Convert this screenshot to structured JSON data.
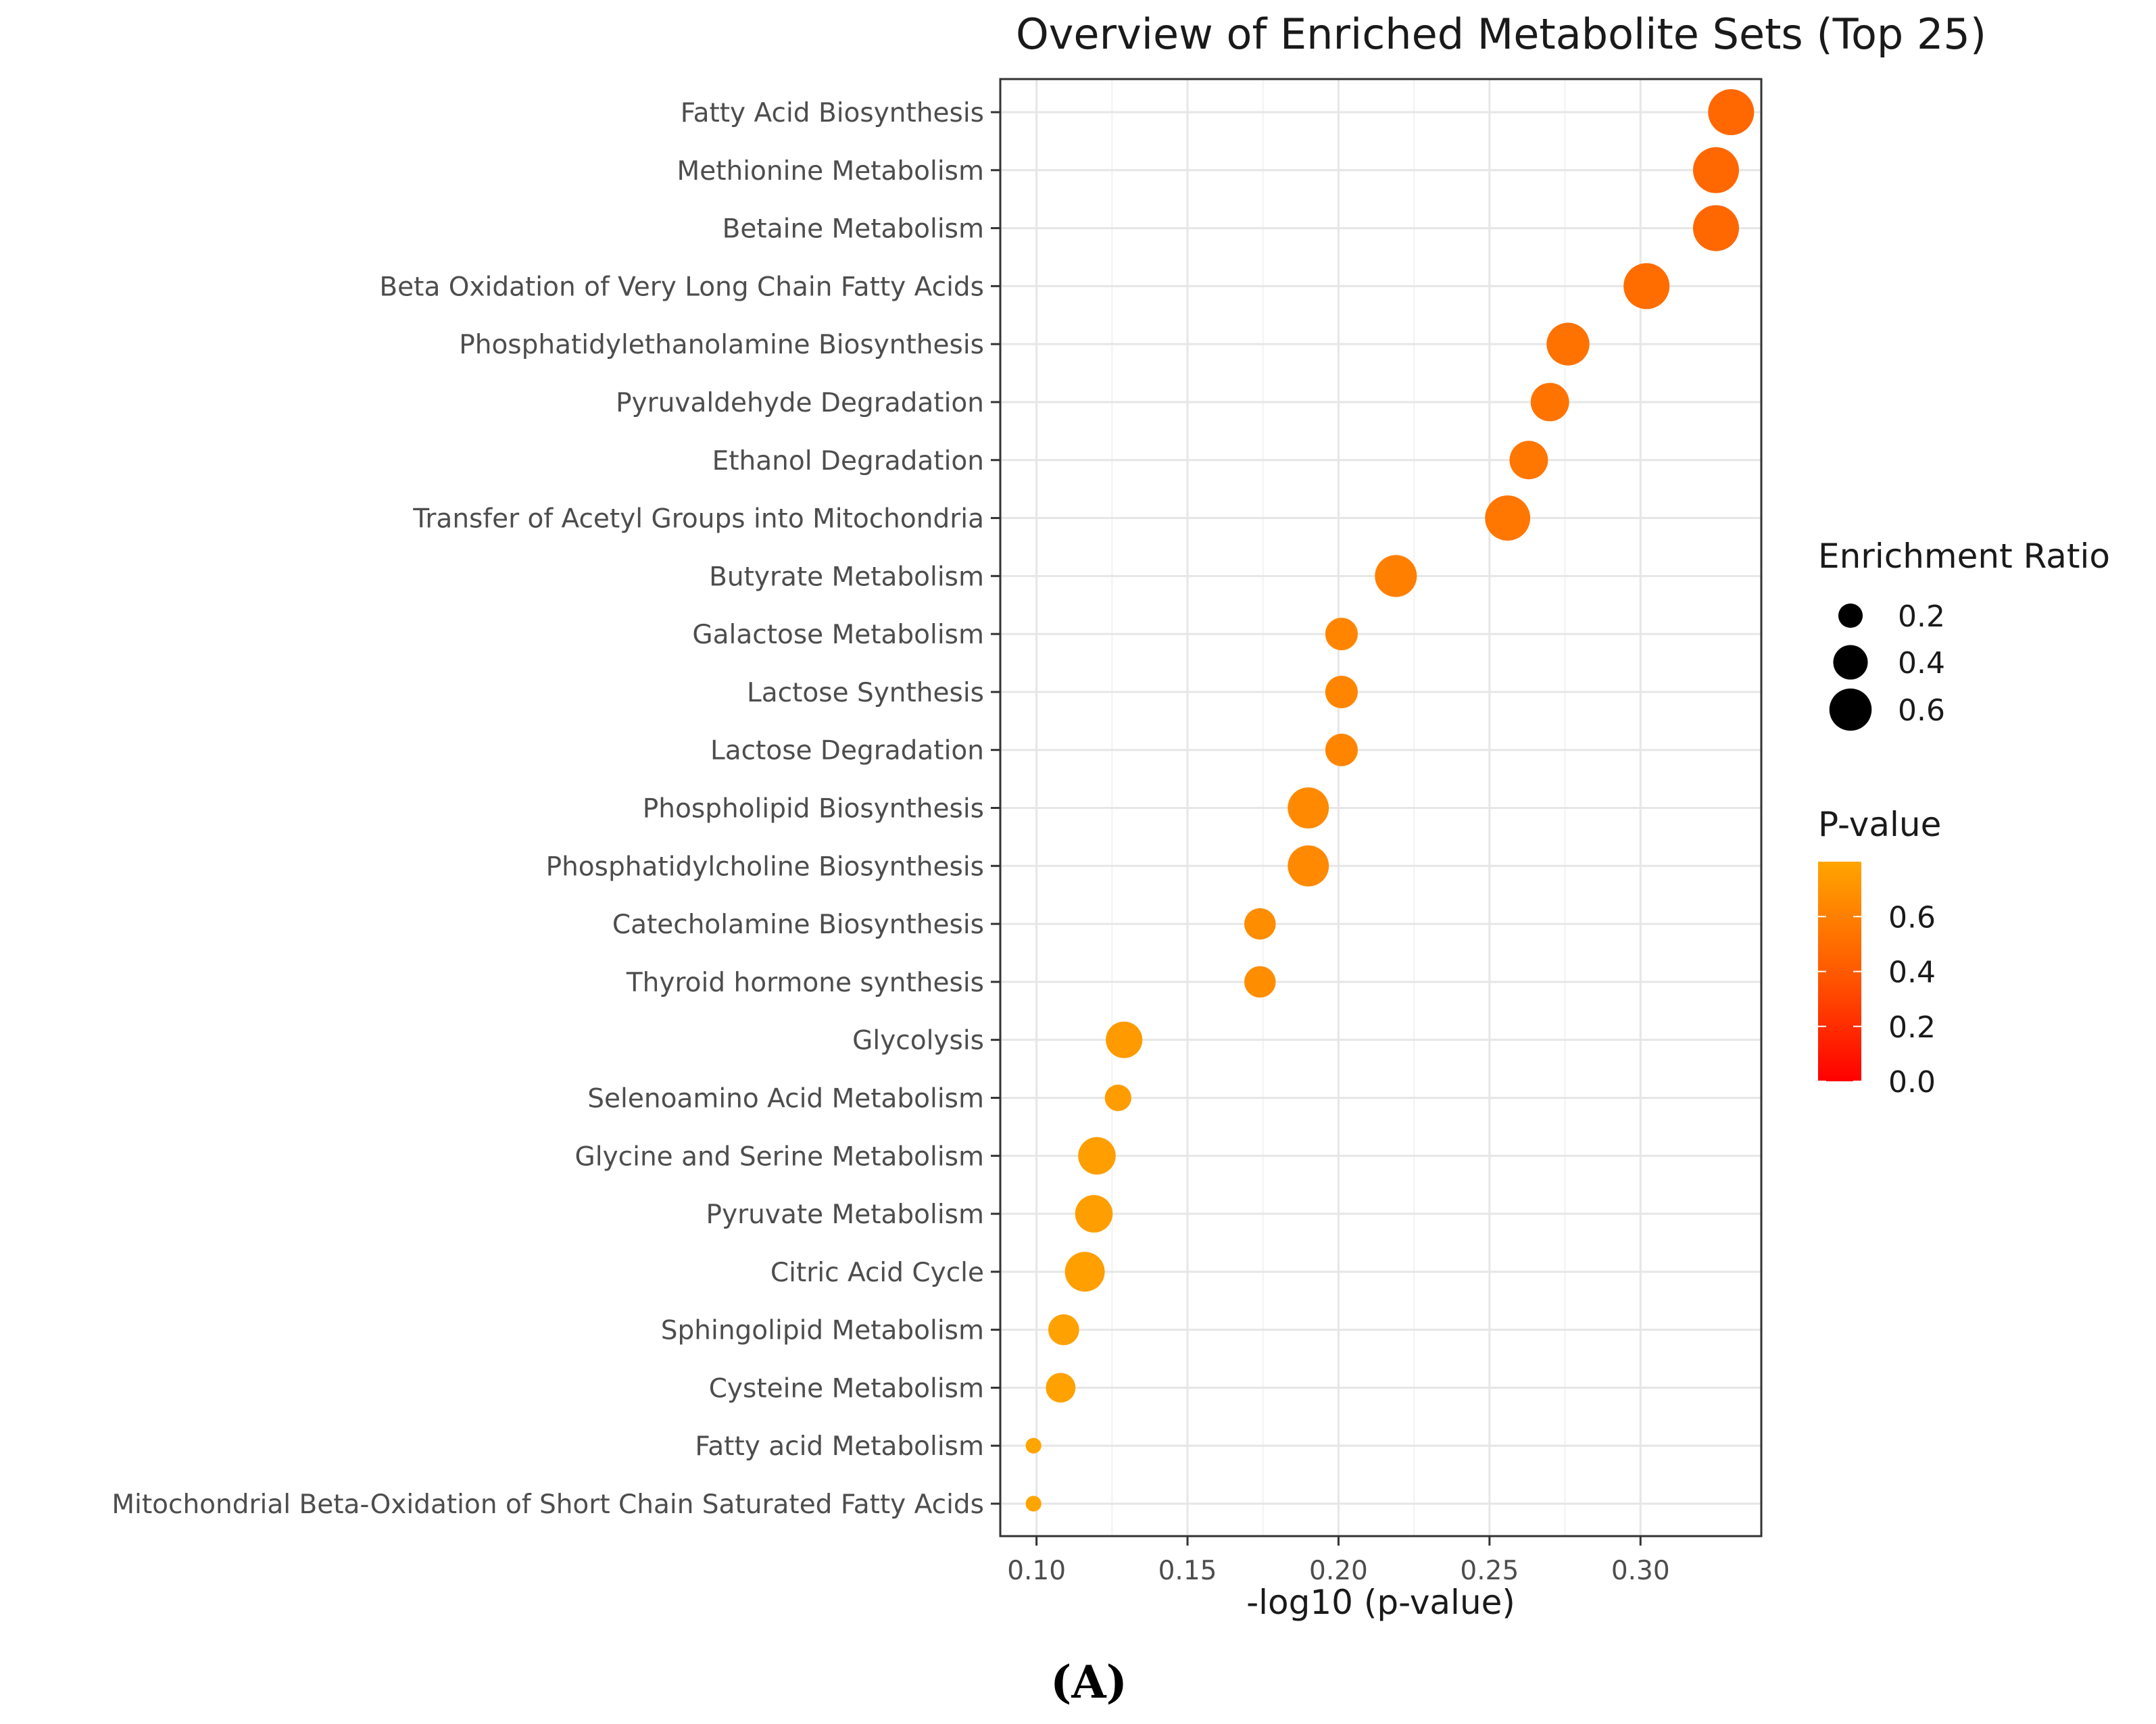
{
  "chart_data": {
    "type": "scatter",
    "title": "Overview of Enriched Metabolite Sets (Top 25)",
    "xlabel": "-log10 (p-value)",
    "ylabel": "",
    "xlim": [
      0.088,
      0.34
    ],
    "xticks": [
      0.1,
      0.15,
      0.2,
      0.25,
      0.3
    ],
    "xtick_labels": [
      "0.10",
      "0.15",
      "0.20",
      "0.25",
      "0.30"
    ],
    "grid": true,
    "panel_label": "(A)",
    "points": [
      {
        "label": "Fatty Acid Biosynthesis",
        "x": 0.33,
        "enrichment_ratio": 0.6,
        "p_value": 0.47
      },
      {
        "label": "Methionine Metabolism",
        "x": 0.325,
        "enrichment_ratio": 0.6,
        "p_value": 0.47
      },
      {
        "label": "Betaine Metabolism",
        "x": 0.325,
        "enrichment_ratio": 0.6,
        "p_value": 0.47
      },
      {
        "label": "Beta Oxidation of Very Long Chain Fatty Acids",
        "x": 0.302,
        "enrichment_ratio": 0.6,
        "p_value": 0.5
      },
      {
        "label": "Phosphatidylethanolamine Biosynthesis",
        "x": 0.276,
        "enrichment_ratio": 0.52,
        "p_value": 0.53
      },
      {
        "label": "Pyruvaldehyde Degradation",
        "x": 0.27,
        "enrichment_ratio": 0.42,
        "p_value": 0.54
      },
      {
        "label": "Ethanol Degradation",
        "x": 0.263,
        "enrichment_ratio": 0.42,
        "p_value": 0.55
      },
      {
        "label": "Transfer of Acetyl Groups into Mitochondria",
        "x": 0.256,
        "enrichment_ratio": 0.58,
        "p_value": 0.55
      },
      {
        "label": "Butyrate Metabolism",
        "x": 0.219,
        "enrichment_ratio": 0.5,
        "p_value": 0.6
      },
      {
        "label": "Galactose Metabolism",
        "x": 0.201,
        "enrichment_ratio": 0.3,
        "p_value": 0.63
      },
      {
        "label": "Lactose Synthesis",
        "x": 0.201,
        "enrichment_ratio": 0.3,
        "p_value": 0.63
      },
      {
        "label": "Lactose Degradation",
        "x": 0.201,
        "enrichment_ratio": 0.3,
        "p_value": 0.63
      },
      {
        "label": "Phospholipid Biosynthesis",
        "x": 0.19,
        "enrichment_ratio": 0.48,
        "p_value": 0.65
      },
      {
        "label": "Phosphatidylcholine Biosynthesis",
        "x": 0.19,
        "enrichment_ratio": 0.48,
        "p_value": 0.65
      },
      {
        "label": "Catecholamine Biosynthesis",
        "x": 0.174,
        "enrichment_ratio": 0.28,
        "p_value": 0.67
      },
      {
        "label": "Thyroid hormone synthesis",
        "x": 0.174,
        "enrichment_ratio": 0.28,
        "p_value": 0.67
      },
      {
        "label": "Glycolysis",
        "x": 0.129,
        "enrichment_ratio": 0.38,
        "p_value": 0.74
      },
      {
        "label": "Selenoamino Acid Metabolism",
        "x": 0.127,
        "enrichment_ratio": 0.2,
        "p_value": 0.75
      },
      {
        "label": "Glycine and Serine Metabolism",
        "x": 0.12,
        "enrichment_ratio": 0.4,
        "p_value": 0.76
      },
      {
        "label": "Pyruvate Metabolism",
        "x": 0.119,
        "enrichment_ratio": 0.4,
        "p_value": 0.76
      },
      {
        "label": "Citric Acid Cycle",
        "x": 0.116,
        "enrichment_ratio": 0.45,
        "p_value": 0.77
      },
      {
        "label": "Sphingolipid Metabolism",
        "x": 0.109,
        "enrichment_ratio": 0.27,
        "p_value": 0.78
      },
      {
        "label": "Cysteine Metabolism",
        "x": 0.108,
        "enrichment_ratio": 0.25,
        "p_value": 0.78
      },
      {
        "label": "Fatty acid Metabolism",
        "x": 0.099,
        "enrichment_ratio": 0.07,
        "p_value": 0.8
      },
      {
        "label": "Mitochondrial Beta-Oxidation of Short Chain Saturated Fatty Acids",
        "x": 0.099,
        "enrichment_ratio": 0.07,
        "p_value": 0.8
      }
    ],
    "legend_size": {
      "title": "Enrichment Ratio",
      "values": [
        0.2,
        0.4,
        0.6
      ],
      "labels": [
        "0.2",
        "0.4",
        "0.6"
      ]
    },
    "legend_color": {
      "title": "P-value",
      "range": [
        0.0,
        0.8
      ],
      "ticks": [
        0.6,
        0.4,
        0.2,
        0.0
      ],
      "tick_labels": [
        "0.6",
        "0.4",
        "0.2",
        "0.0"
      ],
      "low_color": "#ff0000",
      "mid_color": "#ff5a00",
      "high_color": "#ffa500"
    }
  }
}
